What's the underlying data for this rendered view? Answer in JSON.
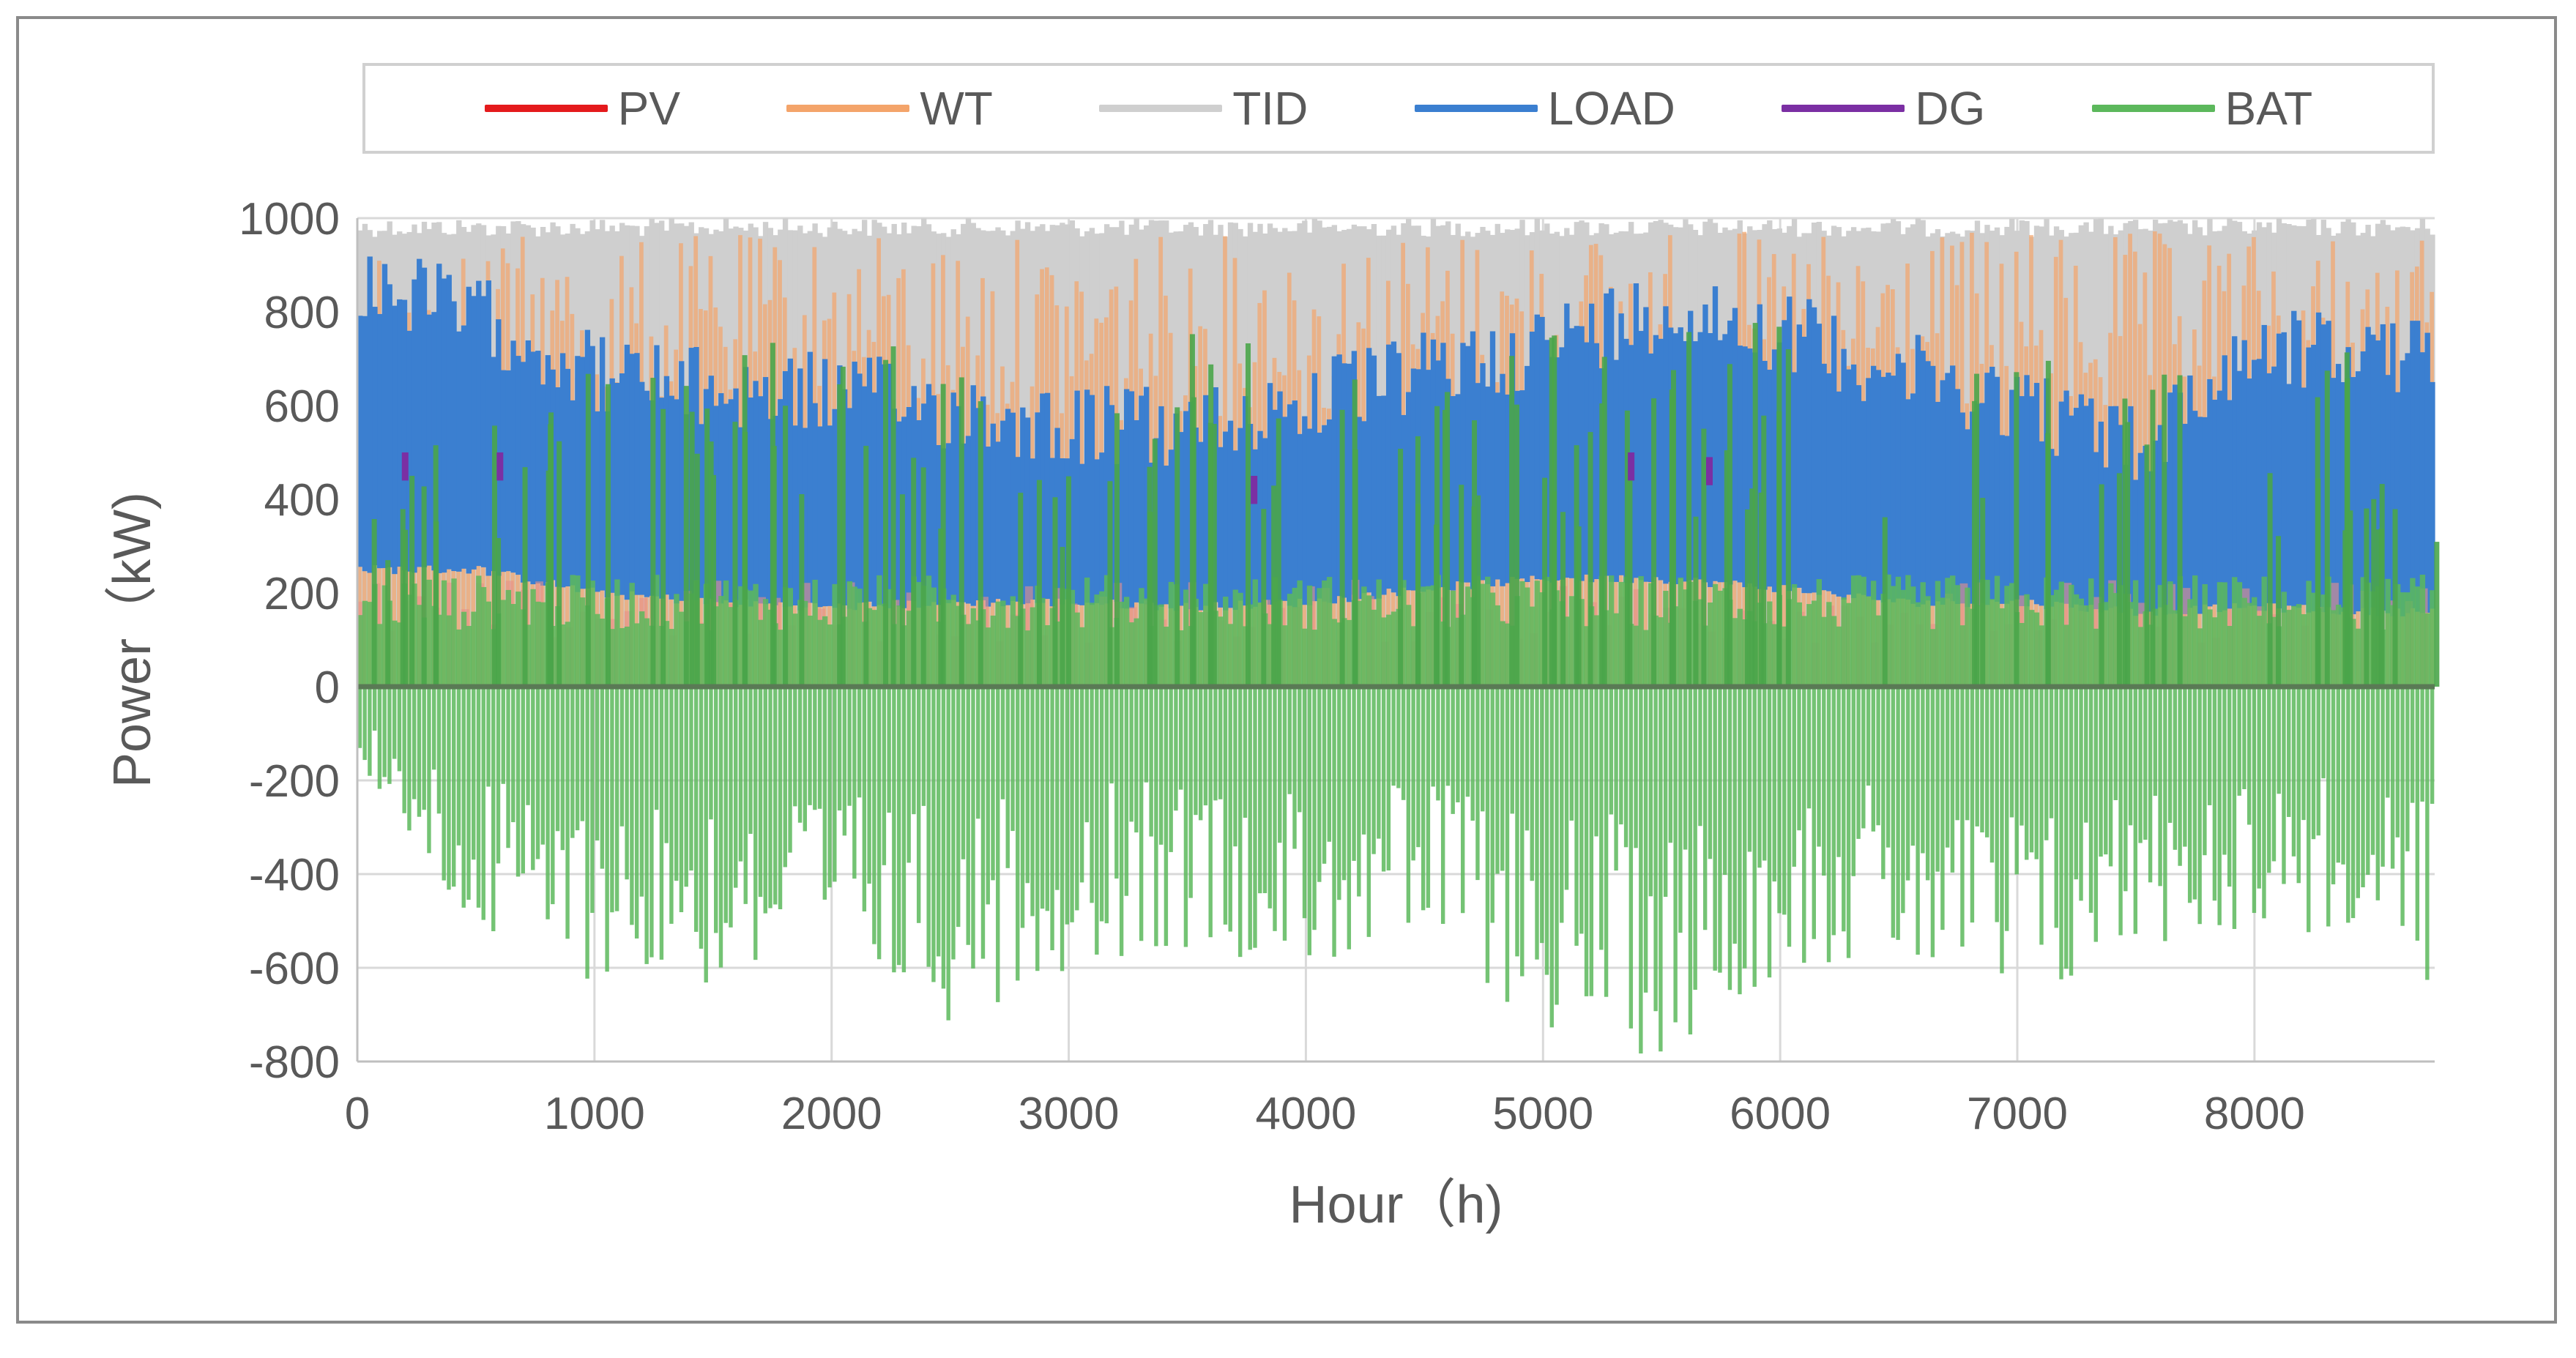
{
  "chart_data": {
    "type": "area",
    "title": "",
    "xlabel": "Hour（h)",
    "ylabel": "Power（kW)",
    "xlim": [
      0,
      8760
    ],
    "ylim": [
      -800,
      1000
    ],
    "x_ticks": [
      0,
      1000,
      2000,
      3000,
      4000,
      5000,
      6000,
      7000,
      8000
    ],
    "y_ticks": [
      -800,
      -600,
      -400,
      -200,
      0,
      200,
      400,
      600,
      800,
      1000
    ],
    "grid": true,
    "legend_position": "top",
    "series": [
      {
        "name": "PV",
        "color": "#e41a1c",
        "note_range": [
          0,
          230
        ]
      },
      {
        "name": "WT",
        "color": "#f4a46a",
        "envelope_x": [
          0,
          1000,
          2000,
          3000,
          4000,
          5000,
          6000,
          7000,
          8000,
          8760
        ],
        "envelope_y": [
          970,
          960,
          970,
          960,
          970,
          980,
          970,
          975,
          970,
          970
        ]
      },
      {
        "name": "TID",
        "color": "#cfcfcf",
        "envelope_x": [
          0,
          8760
        ],
        "envelope_y": [
          1000,
          1000
        ]
      },
      {
        "name": "LOAD",
        "color": "#3b7fd0",
        "x": [
          0,
          500,
          1000,
          1500,
          2000,
          2500,
          3000,
          3500,
          4000,
          4500,
          5000,
          5500,
          6000,
          6500,
          7000,
          7500,
          8000,
          8500,
          8760
        ],
        "y_max": [
          960,
          880,
          760,
          720,
          720,
          680,
          650,
          640,
          700,
          760,
          820,
          900,
          850,
          760,
          700,
          600,
          820,
          800,
          780
        ],
        "y_min": [
          240,
          240,
          190,
          170,
          160,
          170,
          170,
          160,
          170,
          200,
          220,
          220,
          200,
          170,
          170,
          150,
          160,
          150,
          150
        ]
      },
      {
        "name": "DG",
        "color": "#7b2fa3",
        "x": [
          200,
          600,
          3780,
          5370,
          5700
        ],
        "y": [
          500,
          500,
          450,
          500,
          490
        ]
      },
      {
        "name": "BAT",
        "color": "#5cb85c",
        "x": [
          0,
          500,
          1000,
          1500,
          2000,
          2500,
          3000,
          3500,
          4000,
          4500,
          5000,
          5500,
          6000,
          6500,
          7000,
          7500,
          8000,
          8500,
          8760
        ],
        "y_max": [
          500,
          650,
          700,
          680,
          800,
          680,
          600,
          800,
          700,
          720,
          760,
          750,
          800,
          800,
          760,
          700,
          700,
          750,
          580
        ],
        "y_min": [
          -200,
          -560,
          -630,
          -650,
          -610,
          -720,
          -600,
          -560,
          -600,
          -560,
          -740,
          -800,
          -600,
          -600,
          -730,
          -560,
          -520,
          -560,
          -660
        ]
      }
    ]
  }
}
